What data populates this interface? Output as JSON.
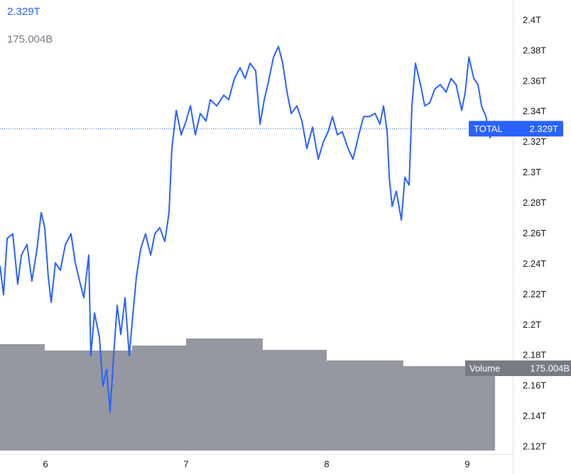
{
  "chart_data": {
    "type": "line",
    "header_value": "2.329T",
    "header_volume": "175.004B",
    "series": [
      {
        "name": "TOTAL",
        "color": "#2962ff",
        "last_value_label": "2.329T",
        "x": [
          5.677,
          5.702,
          5.728,
          5.768,
          5.803,
          5.829,
          5.869,
          5.904,
          5.94,
          5.97,
          5.995,
          6.02,
          6.041,
          6.071,
          6.106,
          6.142,
          6.182,
          6.212,
          6.243,
          6.273,
          6.308,
          6.323,
          6.349,
          6.384,
          6.409,
          6.435,
          6.46,
          6.485,
          6.51,
          6.536,
          6.566,
          6.596,
          6.616,
          6.647,
          6.677,
          6.712,
          6.748,
          6.778,
          6.813,
          6.849,
          6.879,
          6.899,
          6.93,
          6.965,
          7.0,
          7.031,
          7.066,
          7.101,
          7.142,
          7.172,
          7.218,
          7.268,
          7.303,
          7.344,
          7.384,
          7.42,
          7.455,
          7.495,
          7.526,
          7.556,
          7.586,
          7.622,
          7.657,
          7.687,
          7.718,
          7.748,
          7.788,
          7.824,
          7.859,
          7.899,
          7.94,
          7.975,
          8.01,
          8.041,
          8.076,
          8.111,
          8.152,
          8.187,
          8.228,
          8.263,
          8.303,
          8.344,
          8.379,
          8.404,
          8.43,
          8.445,
          8.465,
          8.495,
          8.531,
          8.556,
          8.586,
          8.606,
          8.631,
          8.667,
          8.697,
          8.733,
          8.768,
          8.808,
          8.849,
          8.884,
          8.92,
          8.96,
          8.985,
          9.011,
          9.046,
          9.076,
          9.101,
          9.132,
          9.162,
          9.192,
          9.213
        ],
        "values": [
          2.239,
          2.22,
          2.257,
          2.26,
          2.227,
          2.246,
          2.253,
          2.229,
          2.25,
          2.274,
          2.264,
          2.232,
          2.215,
          2.241,
          2.236,
          2.253,
          2.26,
          2.241,
          2.229,
          2.218,
          2.246,
          2.18,
          2.208,
          2.192,
          2.16,
          2.171,
          2.143,
          2.18,
          2.213,
          2.194,
          2.218,
          2.18,
          2.201,
          2.232,
          2.25,
          2.26,
          2.246,
          2.26,
          2.264,
          2.255,
          2.274,
          2.316,
          2.341,
          2.325,
          2.334,
          2.344,
          2.325,
          2.339,
          2.334,
          2.348,
          2.344,
          2.351,
          2.348,
          2.362,
          2.369,
          2.362,
          2.372,
          2.367,
          2.332,
          2.348,
          2.36,
          2.376,
          2.383,
          2.372,
          2.353,
          2.339,
          2.344,
          2.334,
          2.316,
          2.33,
          2.309,
          2.32,
          2.327,
          2.337,
          2.325,
          2.327,
          2.316,
          2.309,
          2.325,
          2.337,
          2.337,
          2.339,
          2.332,
          2.344,
          2.327,
          2.297,
          2.278,
          2.288,
          2.269,
          2.297,
          2.292,
          2.344,
          2.372,
          2.358,
          2.344,
          2.346,
          2.355,
          2.358,
          2.353,
          2.362,
          2.358,
          2.341,
          2.353,
          2.376,
          2.362,
          2.358,
          2.344,
          2.337,
          2.323,
          2.334,
          2.329
        ]
      }
    ],
    "volume": {
      "name": "Volume",
      "color": "#9598a1",
      "last_value_label": "175.004B",
      "bins": [
        5.677,
        5.995,
        6.616,
        7.0,
        7.545,
        8.0,
        8.545,
        9.197
      ],
      "values": [
        220.6,
        207.4,
        217.7,
        232.4,
        208.8,
        186.8,
        175.004
      ],
      "ylim": [
        0,
        934
      ]
    },
    "xlim": [
      5.677,
      9.323
    ],
    "xticks": [
      6,
      7,
      8,
      9
    ],
    "ylim": [
      2.1177,
      2.4135
    ],
    "yticks": [
      {
        "value": 2.12,
        "label": "2.12T"
      },
      {
        "value": 2.14,
        "label": "2.14T"
      },
      {
        "value": 2.16,
        "label": "2.16T"
      },
      {
        "value": 2.18,
        "label": "2.18T"
      },
      {
        "value": 2.2,
        "label": "2.2T"
      },
      {
        "value": 2.22,
        "label": "2.22T"
      },
      {
        "value": 2.24,
        "label": "2.24T"
      },
      {
        "value": 2.26,
        "label": "2.26T"
      },
      {
        "value": 2.28,
        "label": "2.28T"
      },
      {
        "value": 2.3,
        "label": "2.3T"
      },
      {
        "value": 2.32,
        "label": "2.32T"
      },
      {
        "value": 2.34,
        "label": "2.34T"
      },
      {
        "value": 2.36,
        "label": "2.36T"
      },
      {
        "value": 2.38,
        "label": "2.38T"
      },
      {
        "value": 2.4,
        "label": "2.4T"
      }
    ]
  }
}
